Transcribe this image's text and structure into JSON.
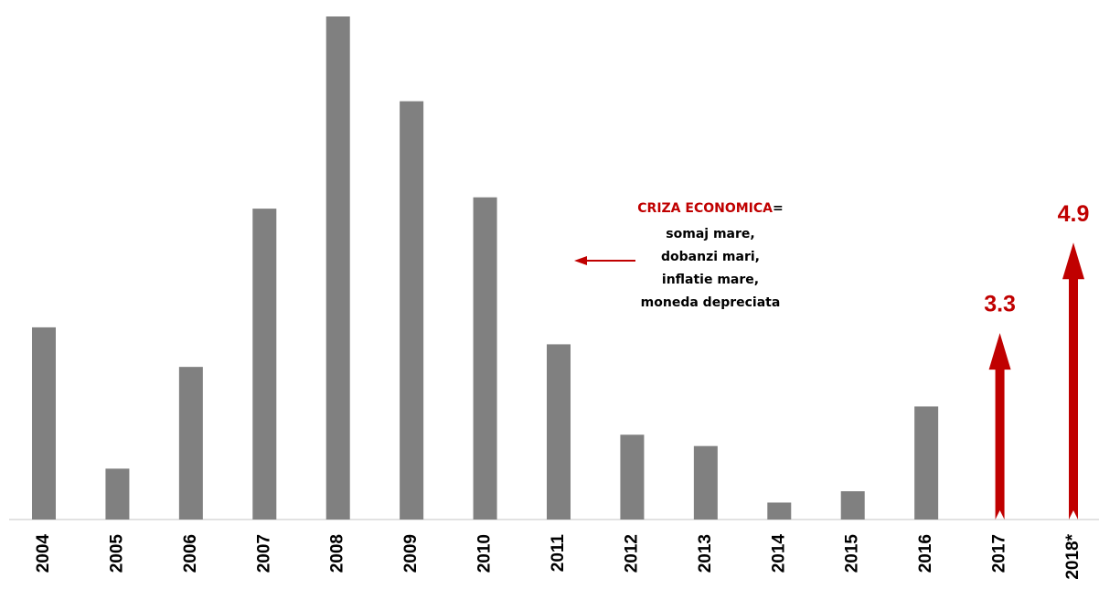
{
  "chart_data": {
    "type": "bar",
    "categories": [
      "2004",
      "2005",
      "2006",
      "2007",
      "2008",
      "2009",
      "2010",
      "2011",
      "2012",
      "2013",
      "2014",
      "2015",
      "2016",
      "2017",
      "2018*"
    ],
    "series": [
      {
        "color": "#808080",
        "mark": "bar",
        "values": [
          3.4,
          0.9,
          2.7,
          5.5,
          8.9,
          7.4,
          5.7,
          3.1,
          1.5,
          1.3,
          0.3,
          0.5,
          2.0,
          null,
          null
        ]
      },
      {
        "color": "#c00000",
        "mark": "arrow",
        "values": [
          null,
          null,
          null,
          null,
          null,
          null,
          null,
          null,
          null,
          null,
          null,
          null,
          null,
          3.3,
          4.9
        ]
      }
    ],
    "annotation": {
      "heading": "CRIZA ECONOMICA",
      "heading_suffix": "=",
      "lines": [
        "somaj mare,",
        "dobanzi mari,",
        "inflatie mare,",
        "moneda depreciata"
      ]
    }
  }
}
